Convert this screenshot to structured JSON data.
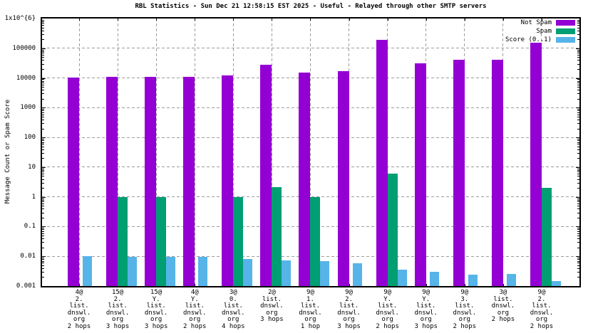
{
  "title": "RBL Statistics - Sun Dec 21 12:58:15 EST 2025 - Useful - Relayed through other SMTP servers",
  "y_axis": {
    "label": "Message Count or Spam Score",
    "tick_labels_bottom_to_top": [
      "0.001",
      "0.01",
      "0.1",
      "1",
      "10",
      "100",
      "1000",
      "10000",
      "100000",
      "1x10^{6}"
    ]
  },
  "legend": [
    {
      "label": "Not Spam",
      "color": "#9400d3"
    },
    {
      "label": "Spam",
      "color": "#009e73"
    },
    {
      "label": "Score (0..1)",
      "color": "#56b4e9"
    }
  ],
  "colors": {
    "not_spam": "#9400d3",
    "spam": "#009e73",
    "score": "#56b4e9",
    "grid": "#9c9c9c",
    "border": "#000000"
  },
  "chart_data": {
    "type": "bar",
    "y_scale": "log",
    "ylim": [
      0.001,
      1000000
    ],
    "grid": true,
    "legend_position": "top-right",
    "title": "RBL Statistics - Sun Dec 21 12:58:15 EST 2025 - Useful - Relayed through other SMTP servers",
    "xlabel": "",
    "ylabel": "Message Count or Spam Score",
    "categories": [
      [
        "4@",
        "2.",
        "list.",
        "dnswl.",
        "org",
        "2 hops"
      ],
      [
        "15@",
        "2.",
        "list.",
        "dnswl.",
        "org",
        "3 hops"
      ],
      [
        "15@",
        "Y.",
        "list.",
        "dnswl.",
        "org",
        "3 hops"
      ],
      [
        "4@",
        "Y.",
        "list.",
        "dnswl.",
        "org",
        "2 hops"
      ],
      [
        "3@",
        "0.",
        "list.",
        "dnswl.",
        "org",
        "4 hops"
      ],
      [
        "2@",
        "list.",
        "dnswl.",
        "org",
        "3 hops"
      ],
      [
        "9@",
        "1.",
        "list.",
        "dnswl.",
        "org",
        "1 hop"
      ],
      [
        "9@",
        "2.",
        "list.",
        "dnswl.",
        "org",
        "3 hops"
      ],
      [
        "9@",
        "Y.",
        "list.",
        "dnswl.",
        "org",
        "2 hops"
      ],
      [
        "9@",
        "Y.",
        "list.",
        "dnswl.",
        "org",
        "3 hops"
      ],
      [
        "9@",
        "3.",
        "list.",
        "dnswl.",
        "org",
        "2 hops"
      ],
      [
        "3@",
        "list.",
        "dnswl.",
        "org",
        "2 hops"
      ],
      [
        "9@",
        "2.",
        "list.",
        "dnswl.",
        "org",
        "2 hops"
      ]
    ],
    "series": [
      {
        "name": "Not Spam",
        "color": "#9400d3",
        "values": [
          10500,
          11000,
          11000,
          11000,
          12500,
          28000,
          15000,
          17000,
          190000,
          31000,
          41000,
          42000,
          150000
        ]
      },
      {
        "name": "Spam",
        "color": "#009e73",
        "values": [
          null,
          1.0,
          1.0,
          null,
          1.0,
          2.1,
          1.0,
          null,
          6.0,
          null,
          null,
          null,
          2.0
        ]
      },
      {
        "name": "Score (0..1)",
        "color": "#56b4e9",
        "values": [
          0.01,
          0.0095,
          0.0094,
          0.0095,
          0.008,
          0.0072,
          0.0068,
          0.0058,
          0.0035,
          0.003,
          0.0024,
          0.0025,
          0.0015
        ]
      }
    ]
  }
}
